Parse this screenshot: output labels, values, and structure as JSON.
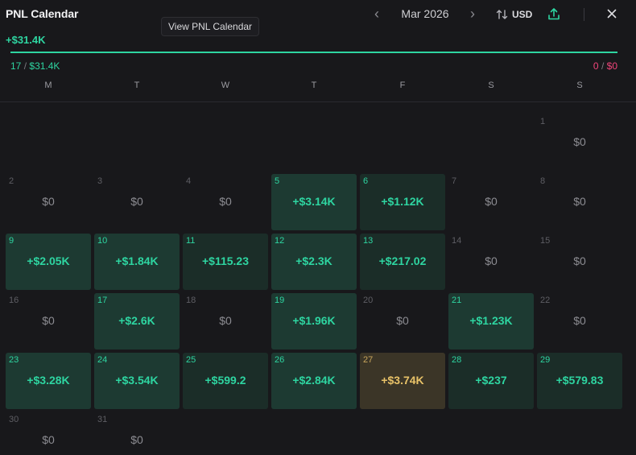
{
  "header": {
    "title": "PNL Calendar",
    "tooltip": "View PNL Calendar",
    "month_label": "Mar 2026",
    "prev_icon": "chevron-left-icon",
    "next_icon": "chevron-right-icon",
    "currency": "USD",
    "sort_icon": "sort-arrows-icon",
    "share_icon": "share-upload-icon",
    "close_icon": "close-icon"
  },
  "summary": {
    "total": "+$31.4K",
    "progress_fraction": 1.0,
    "win_days": "17",
    "win_amount": "$31.4K",
    "loss_days": "0",
    "loss_amount": "$0",
    "separator": "/"
  },
  "weekdays": [
    "M",
    "T",
    "W",
    "T",
    "F",
    "S",
    "S"
  ],
  "days": [
    {
      "day": "1",
      "value": "$0",
      "style": "empty"
    },
    {
      "day": "2",
      "value": "$0",
      "style": "empty"
    },
    {
      "day": "3",
      "value": "$0",
      "style": "empty"
    },
    {
      "day": "4",
      "value": "$0",
      "style": "empty"
    },
    {
      "day": "5",
      "value": "+$3.14K",
      "style": "strong"
    },
    {
      "day": "6",
      "value": "+$1.12K",
      "style": "light"
    },
    {
      "day": "7",
      "value": "$0",
      "style": "empty"
    },
    {
      "day": "8",
      "value": "$0",
      "style": "empty"
    },
    {
      "day": "9",
      "value": "+$2.05K",
      "style": "strong"
    },
    {
      "day": "10",
      "value": "+$1.84K",
      "style": "strong"
    },
    {
      "day": "11",
      "value": "+$115.23",
      "style": "light"
    },
    {
      "day": "12",
      "value": "+$2.3K",
      "style": "strong"
    },
    {
      "day": "13",
      "value": "+$217.02",
      "style": "light"
    },
    {
      "day": "14",
      "value": "$0",
      "style": "empty"
    },
    {
      "day": "15",
      "value": "$0",
      "style": "empty"
    },
    {
      "day": "16",
      "value": "$0",
      "style": "empty"
    },
    {
      "day": "17",
      "value": "+$2.6K",
      "style": "strong"
    },
    {
      "day": "18",
      "value": "$0",
      "style": "empty"
    },
    {
      "day": "19",
      "value": "+$1.96K",
      "style": "strong"
    },
    {
      "day": "20",
      "value": "$0",
      "style": "empty"
    },
    {
      "day": "21",
      "value": "+$1.23K",
      "style": "strong"
    },
    {
      "day": "22",
      "value": "$0",
      "style": "empty"
    },
    {
      "day": "23",
      "value": "+$3.28K",
      "style": "strong"
    },
    {
      "day": "24",
      "value": "+$3.54K",
      "style": "strong"
    },
    {
      "day": "25",
      "value": "+$599.2",
      "style": "light"
    },
    {
      "day": "26",
      "value": "+$2.84K",
      "style": "strong"
    },
    {
      "day": "27",
      "value": "+$3.74K",
      "style": "highlight"
    },
    {
      "day": "28",
      "value": "+$237",
      "style": "light"
    },
    {
      "day": "29",
      "value": "+$579.83",
      "style": "light"
    },
    {
      "day": "30",
      "value": "$0",
      "style": "empty"
    },
    {
      "day": "31",
      "value": "$0",
      "style": "empty"
    }
  ],
  "first_weekday_index": 6,
  "colors": {
    "positive": "#2ed5a1",
    "negative": "#f0457a",
    "highlight": "#e8c268"
  }
}
